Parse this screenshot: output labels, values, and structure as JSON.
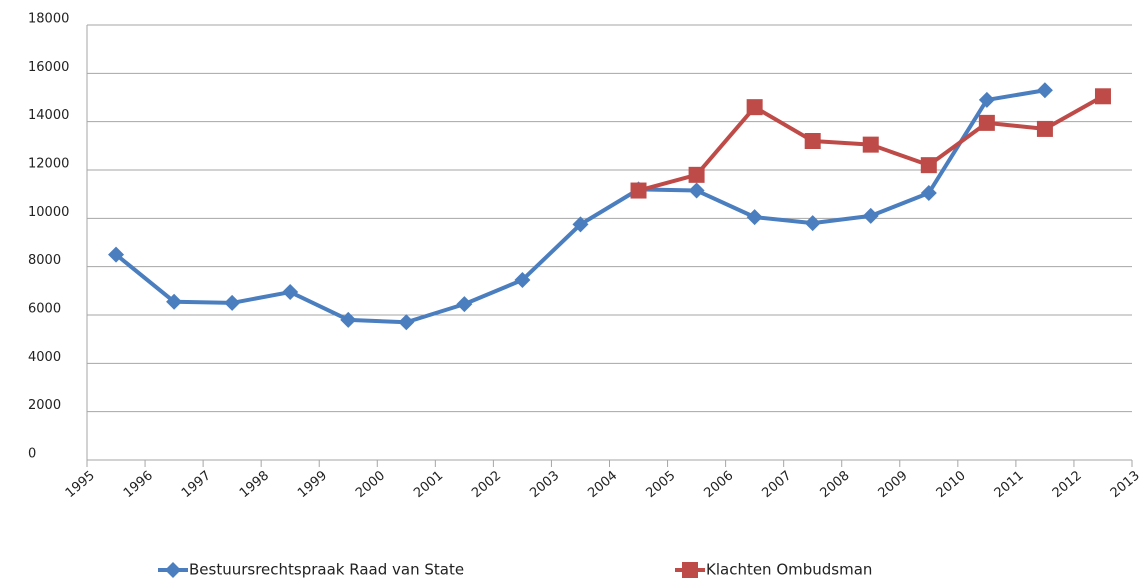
{
  "chart_data": {
    "type": "line",
    "categories": [
      "1995",
      "1996",
      "1997",
      "1998",
      "1999",
      "2000",
      "2001",
      "2002",
      "2003",
      "2004",
      "2005",
      "2006",
      "2007",
      "2008",
      "2009",
      "2010",
      "2011",
      "2012",
      "2013"
    ],
    "series": [
      {
        "name": "Bestuursrechtspraak Raad van State",
        "color": "#4a7ebf",
        "marker": "diamond",
        "values": [
          8500,
          6550,
          6500,
          6950,
          5800,
          5700,
          6450,
          7450,
          9750,
          11200,
          11150,
          10050,
          9800,
          10100,
          11050,
          14900,
          15300,
          null,
          null
        ]
      },
      {
        "name": "Klachten Ombudsman",
        "color": "#be4b48",
        "marker": "square",
        "values": [
          null,
          null,
          null,
          null,
          null,
          null,
          null,
          null,
          null,
          11150,
          11800,
          14600,
          13200,
          13050,
          12200,
          13950,
          13700,
          15050,
          null
        ]
      }
    ],
    "ylim": [
      0,
      18000
    ],
    "yticks": [
      0,
      2000,
      4000,
      6000,
      8000,
      10000,
      12000,
      14000,
      16000,
      18000
    ],
    "grid": true,
    "legend": "bottom"
  }
}
